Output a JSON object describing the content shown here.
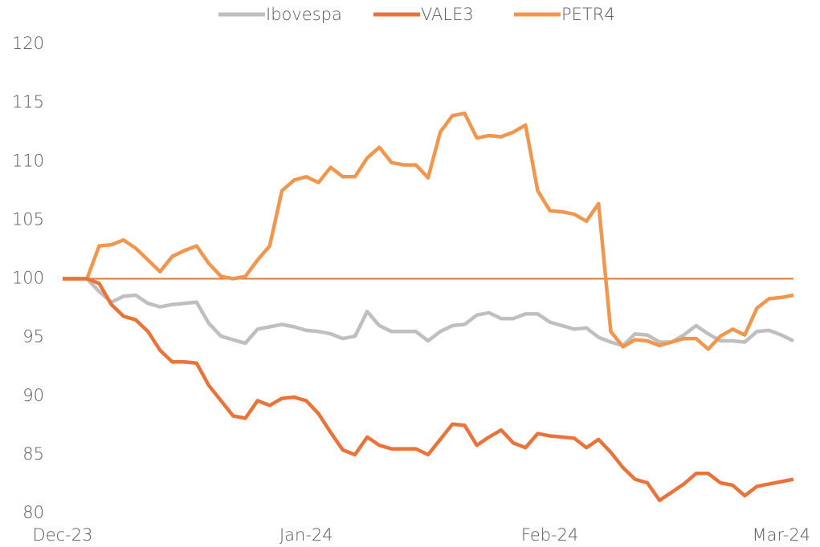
{
  "chart_data": {
    "type": "line",
    "categories": [
      "Dec-23",
      null,
      null,
      null,
      null,
      null,
      null,
      null,
      null,
      null,
      null,
      null,
      null,
      null,
      null,
      null,
      null,
      null,
      null,
      null,
      "Jan-24",
      null,
      null,
      null,
      null,
      null,
      null,
      null,
      null,
      null,
      null,
      null,
      null,
      null,
      null,
      null,
      null,
      null,
      null,
      null,
      "Feb-24",
      null,
      null,
      null,
      null,
      null,
      null,
      null,
      null,
      null,
      null,
      null,
      null,
      null,
      null,
      null,
      null,
      null,
      null,
      "Mar-24",
      null
    ],
    "series": [
      {
        "name": "Ibovespa",
        "color": "#bfbfbf",
        "values": [
          100,
          100,
          100,
          98.9,
          98.0,
          98.5,
          98.6,
          97.9,
          97.6,
          97.8,
          97.9,
          98.0,
          96.2,
          95.1,
          94.8,
          94.5,
          95.7,
          95.9,
          96.1,
          95.9,
          95.6,
          95.5,
          95.3,
          94.9,
          95.1,
          97.2,
          96.0,
          95.5,
          95.5,
          95.5,
          94.7,
          95.5,
          96.0,
          96.1,
          96.9,
          97.1,
          96.6,
          96.6,
          97.0,
          97.0,
          96.3,
          96.0,
          95.7,
          95.8,
          95.0,
          94.6,
          94.3,
          95.3,
          95.2,
          94.6,
          94.6,
          95.2,
          96.0,
          95.3,
          94.7,
          94.7,
          94.6,
          95.5,
          95.6,
          95.2,
          94.7
        ]
      },
      {
        "name": "VALE3",
        "color": "#e8743b",
        "values": [
          100,
          100,
          100,
          99.6,
          97.8,
          96.8,
          96.5,
          95.5,
          93.9,
          92.9,
          92.9,
          92.8,
          90.9,
          89.6,
          88.3,
          88.1,
          89.6,
          89.2,
          89.8,
          89.9,
          89.6,
          88.5,
          86.9,
          85.4,
          85.0,
          86.5,
          85.8,
          85.5,
          85.5,
          85.5,
          85.0,
          86.3,
          87.6,
          87.5,
          85.8,
          86.5,
          87.1,
          86.0,
          85.6,
          86.8,
          86.6,
          86.5,
          86.4,
          85.6,
          86.3,
          85.2,
          83.9,
          82.9,
          82.6,
          81.1,
          81.8,
          82.5,
          83.4,
          83.4,
          82.6,
          82.4,
          81.5,
          82.3,
          82.5,
          82.7,
          82.9
        ]
      },
      {
        "name": "PETR4",
        "color": "#f0964f",
        "values": [
          100,
          100,
          100,
          102.8,
          102.9,
          103.3,
          102.6,
          101.6,
          100.6,
          101.9,
          102.4,
          102.8,
          101.3,
          100.2,
          100.0,
          100.2,
          101.6,
          102.8,
          107.5,
          108.4,
          108.7,
          108.2,
          109.5,
          108.7,
          108.7,
          110.3,
          111.2,
          109.9,
          109.7,
          109.7,
          108.6,
          112.5,
          113.9,
          114.1,
          112.0,
          112.2,
          112.1,
          112.5,
          113.1,
          107.5,
          105.8,
          105.7,
          105.5,
          104.9,
          106.4,
          95.5,
          94.2,
          94.8,
          94.7,
          94.3,
          94.6,
          94.9,
          94.9,
          94.0,
          95.1,
          95.7,
          95.2,
          97.5,
          98.3,
          98.4,
          98.6
        ]
      }
    ],
    "ylim": [
      80,
      120
    ],
    "yticks": [
      80,
      85,
      90,
      95,
      100,
      105,
      110,
      115,
      120
    ],
    "reference_line": {
      "value": 100,
      "color": "#e07a3a"
    },
    "grid": false,
    "legend": "top"
  }
}
